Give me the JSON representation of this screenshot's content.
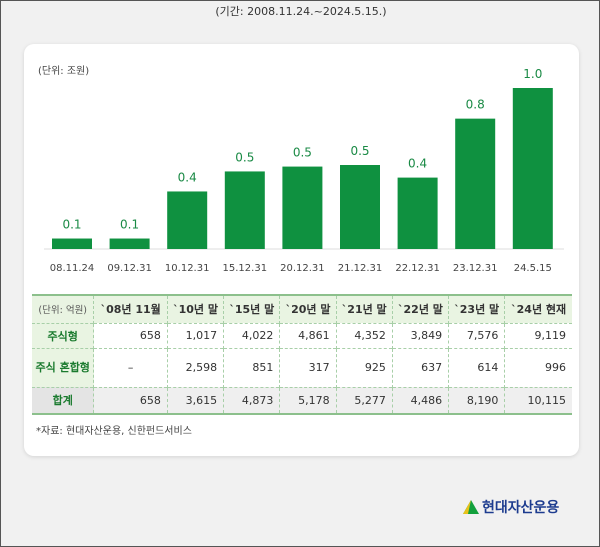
{
  "period": "(기간: 2008.11.24.~2024.5.15.)",
  "unit": "(단위: 조원)",
  "chart_data": {
    "type": "bar",
    "categories": [
      "08.11.24",
      "09.12.31",
      "10.12.31",
      "15.12.31",
      "20.12.31",
      "21.12.31",
      "22.12.31",
      "23.12.31",
      "24.5.15"
    ],
    "values": [
      0.0658,
      0.0658,
      0.3615,
      0.4873,
      0.5178,
      0.5277,
      0.4486,
      0.819,
      1.0115
    ],
    "data_labels": [
      "0.1",
      "0.1",
      "0.4",
      "0.5",
      "0.5",
      "0.5",
      "0.4",
      "0.8",
      "1.0"
    ],
    "ylabel": "(단위: 조원)",
    "ylim": [
      0,
      1.1
    ],
    "grid": false,
    "color": "#0f9140"
  },
  "table": {
    "unit": "(단위: 억원)",
    "headers": [
      "`08년 11월",
      "`10년 말",
      "`15년 말",
      "`20년 말",
      "`21년 말",
      "`22년 말",
      "`23년 말",
      "`24년 현재"
    ],
    "rows": [
      {
        "label": "주식형",
        "values": [
          "658",
          "1,017",
          "4,022",
          "4,861",
          "4,352",
          "3,849",
          "7,576",
          "9,119"
        ]
      },
      {
        "label": "주식 혼합형",
        "values": [
          "–",
          "2,598",
          "851",
          "317",
          "925",
          "637",
          "614",
          "996"
        ]
      },
      {
        "label": "합계",
        "values": [
          "658",
          "3,615",
          "4,873",
          "5,178",
          "5,277",
          "4,486",
          "8,190",
          "10,115"
        ]
      }
    ]
  },
  "note": "*자료: 현대자산운용, 신한펀드서비스",
  "logo": "현대자산운용"
}
